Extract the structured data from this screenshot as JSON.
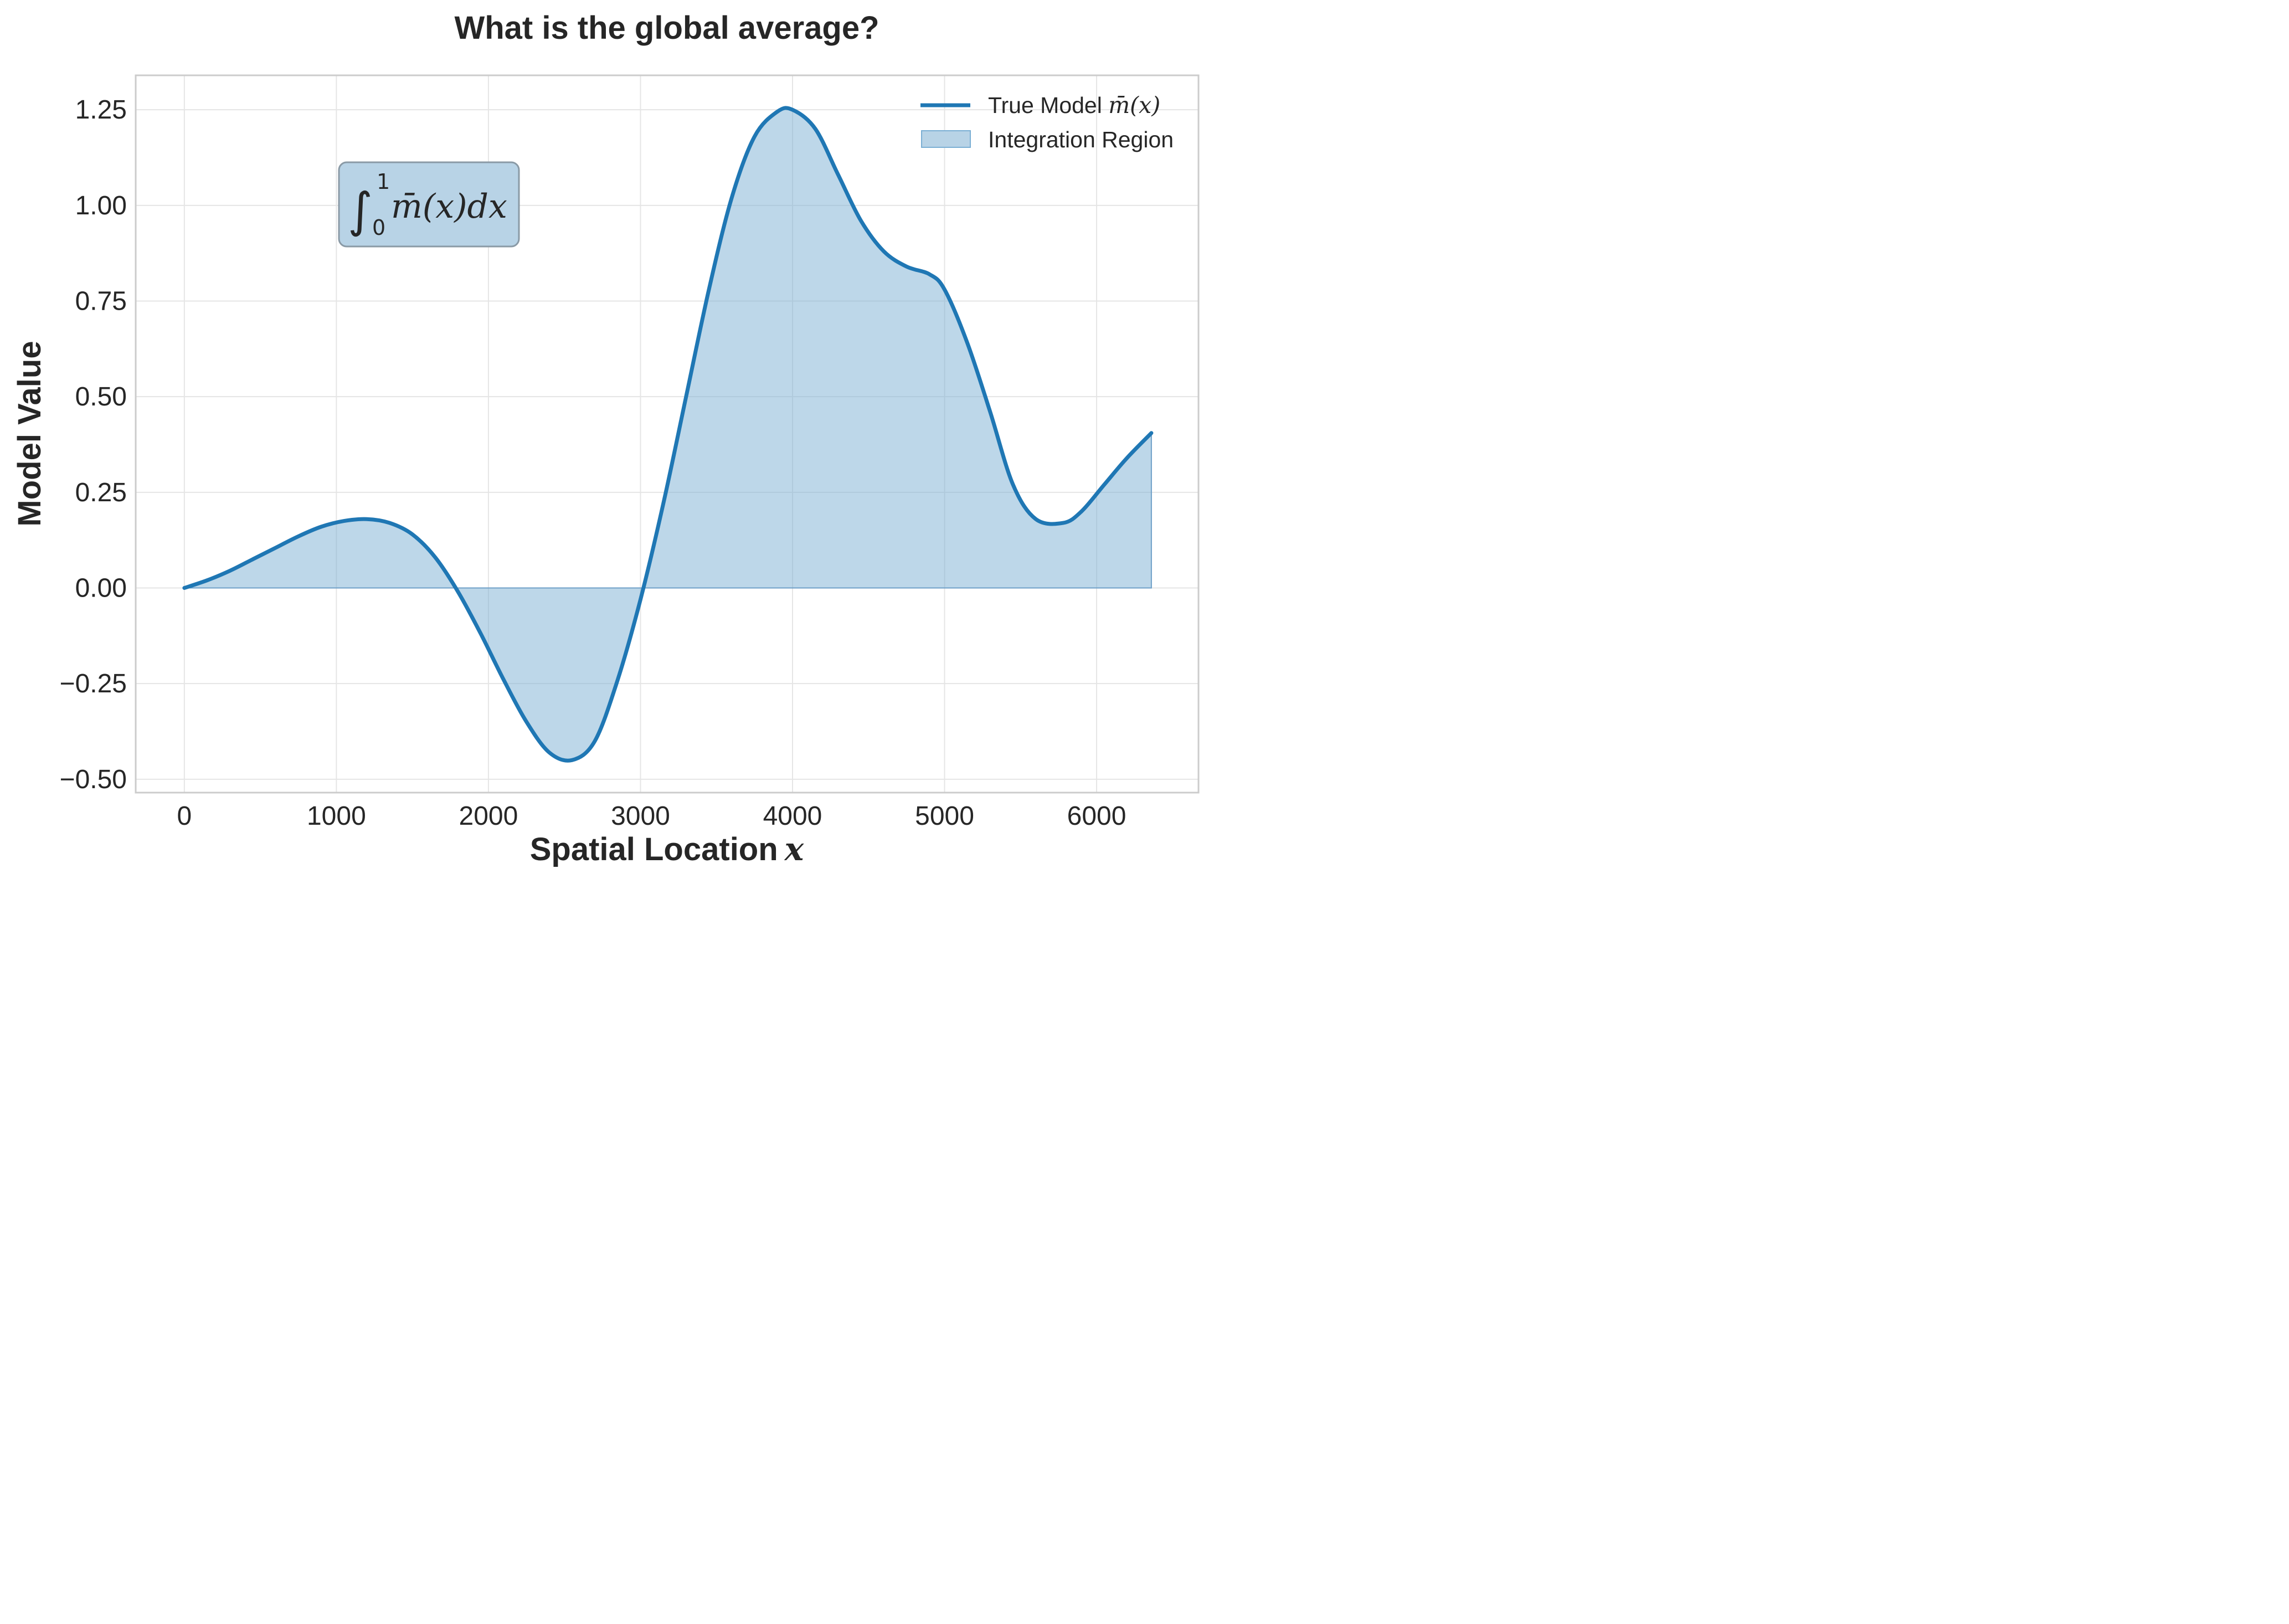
{
  "chart_data": {
    "type": "area",
    "title": "What is the global average?",
    "xlabel": "Spatial Location",
    "xlabel_math": "x",
    "ylabel": "Model Value",
    "xlim": [
      -320,
      6670
    ],
    "ylim": [
      -0.535,
      1.34
    ],
    "grid": true,
    "legend_position": "top-right",
    "xticks": [
      0,
      1000,
      2000,
      3000,
      4000,
      5000,
      6000
    ],
    "xtick_labels": [
      "0",
      "1000",
      "2000",
      "3000",
      "4000",
      "5000",
      "6000"
    ],
    "yticks": [
      -0.5,
      -0.25,
      0.0,
      0.25,
      0.5,
      0.75,
      1.0,
      1.25
    ],
    "ytick_labels": [
      "−0.50",
      "−0.25",
      "0.00",
      "0.25",
      "0.50",
      "0.75",
      "1.00",
      "1.25"
    ],
    "series": [
      {
        "name": "True Model m̄(x)",
        "legend_prefix": "True Model ",
        "legend_math": "m̄(x)",
        "kind": "line",
        "color": "#1f77b4",
        "x": [
          0,
          150,
          300,
          450,
          600,
          750,
          900,
          1050,
          1200,
          1350,
          1500,
          1650,
          1800,
          1950,
          2100,
          2250,
          2400,
          2550,
          2700,
          2850,
          3000,
          3150,
          3300,
          3450,
          3600,
          3750,
          3900,
          4000,
          4150,
          4300,
          4450,
          4600,
          4750,
          4900,
          5000,
          5150,
          5300,
          5450,
          5600,
          5780,
          5900,
          6050,
          6200,
          6360
        ],
        "y": [
          0.0,
          0.02,
          0.045,
          0.075,
          0.105,
          0.135,
          0.16,
          0.175,
          0.18,
          0.17,
          0.14,
          0.08,
          -0.01,
          -0.12,
          -0.24,
          -0.35,
          -0.43,
          -0.45,
          -0.4,
          -0.24,
          -0.03,
          0.22,
          0.5,
          0.78,
          1.02,
          1.18,
          1.245,
          1.25,
          1.2,
          1.08,
          0.96,
          0.88,
          0.84,
          0.82,
          0.78,
          0.64,
          0.46,
          0.27,
          0.18,
          0.17,
          0.2,
          0.27,
          0.34,
          0.405
        ]
      },
      {
        "name": "Integration Region",
        "kind": "fill",
        "color": "#7bafd4"
      }
    ],
    "annotation": {
      "integral_symbol": "∫",
      "upper_limit": "1",
      "lower_limit": "0",
      "expression": "m̄(x)dx",
      "at_x": 1630,
      "at_y": 0.995
    }
  }
}
